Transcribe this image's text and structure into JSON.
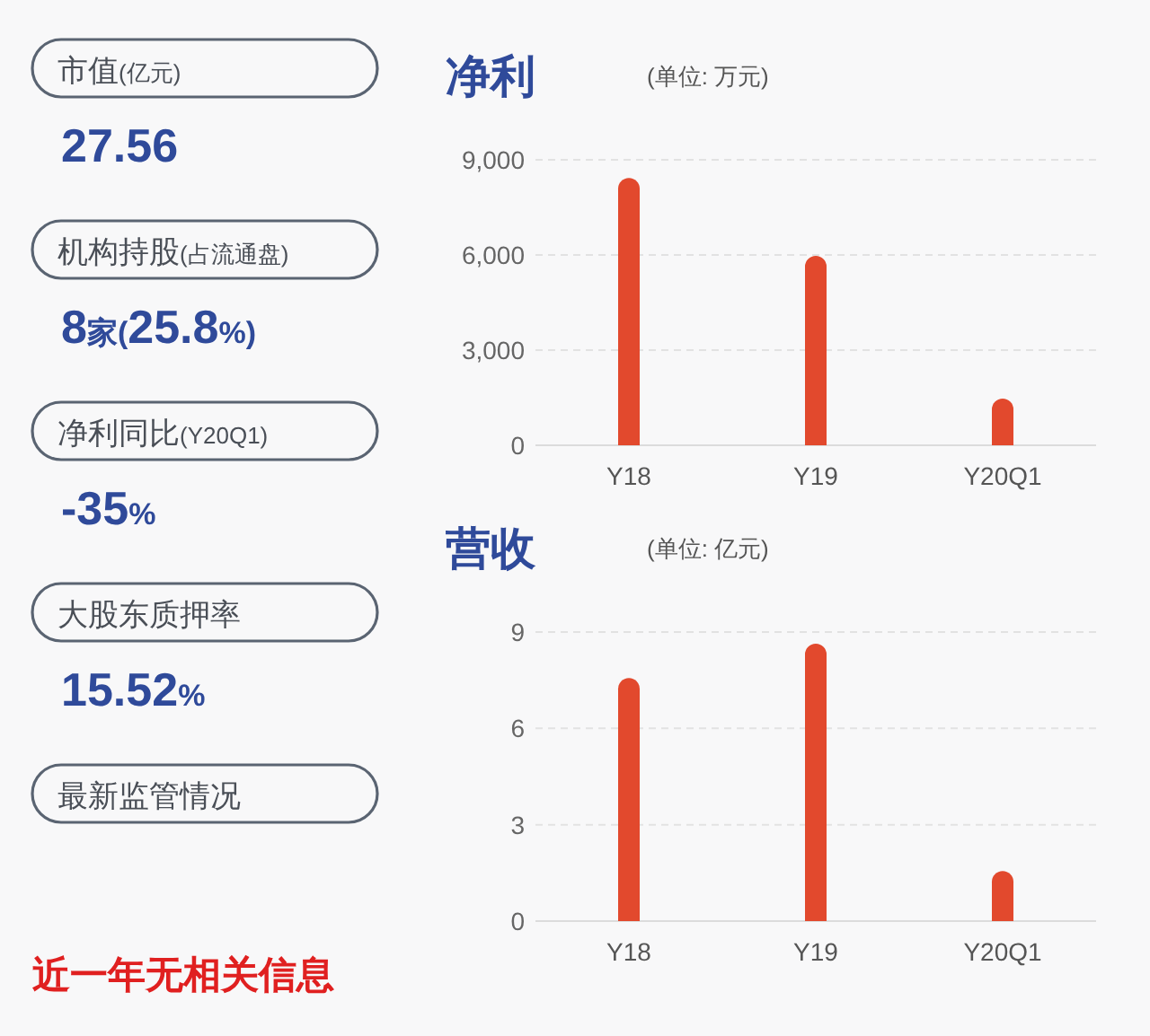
{
  "chart_data": [
    {
      "type": "other",
      "annotations": [
        "市值(亿元)",
        "27.56",
        "机构持股(占流通盘)",
        "8家(25.8%)",
        "净利同比(Y20Q1)",
        "-35%",
        "大股东质押率",
        "15.52%",
        "最新监管情况",
        "近一年无相关信息"
      ]
    },
    {
      "type": "bar",
      "title": "净利",
      "subtitle": "(单位: 万元)",
      "categories": [
        "Y18",
        "Y19",
        "Y20Q1"
      ],
      "series": [
        {
          "color": "#e2492d",
          "values": [
            8430,
            5970,
            1470
          ]
        }
      ],
      "ylim": [
        0,
        9000
      ],
      "yticks": [
        0,
        {
          "value": 3000,
          "label": "3,000"
        },
        {
          "value": 6000,
          "label": "6,000"
        },
        {
          "value": 9000,
          "label": "9,000"
        }
      ],
      "grid": "y"
    },
    {
      "type": "bar",
      "title": "营收",
      "subtitle": "(单位: 亿元)",
      "categories": [
        "Y18",
        "Y19",
        "Y20Q1"
      ],
      "series": [
        {
          "color": "#e2492d",
          "values": [
            7.57,
            8.64,
            1.56
          ]
        }
      ],
      "ylim": [
        0,
        9
      ],
      "yticks": [
        0,
        3,
        6,
        9
      ],
      "grid": "y"
    }
  ]
}
